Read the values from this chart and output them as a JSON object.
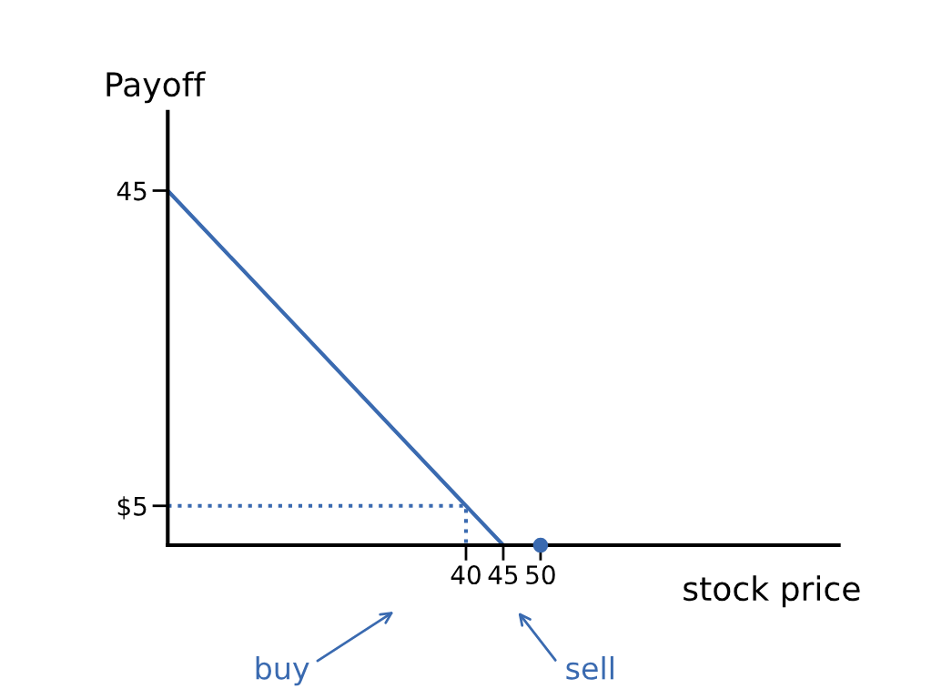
{
  "chart_data": {
    "type": "line",
    "xlabel": "stock price",
    "ylabel": "Payoff",
    "xlim": [
      0,
      90
    ],
    "ylim": [
      0,
      55
    ],
    "xticks": [
      40,
      45,
      50
    ],
    "yticks": [
      {
        "value": 5,
        "label": "$5"
      },
      45
    ],
    "grid": false,
    "legend": false,
    "series": [
      {
        "color": "#3a6ab0",
        "x": [
          0,
          45,
          90
        ],
        "values": [
          45,
          0,
          0
        ],
        "line_style": "solid"
      },
      {
        "type": "line",
        "color": "#3a6ab0",
        "x": [
          0,
          40,
          40
        ],
        "values": [
          5,
          5,
          0
        ],
        "line_style": "dotted"
      },
      {
        "type": "scatter",
        "color": "#3a6ab0",
        "x": [
          50
        ],
        "values": [
          0
        ],
        "marker": "circle"
      }
    ],
    "annotations": [
      "buy",
      "sell"
    ]
  }
}
